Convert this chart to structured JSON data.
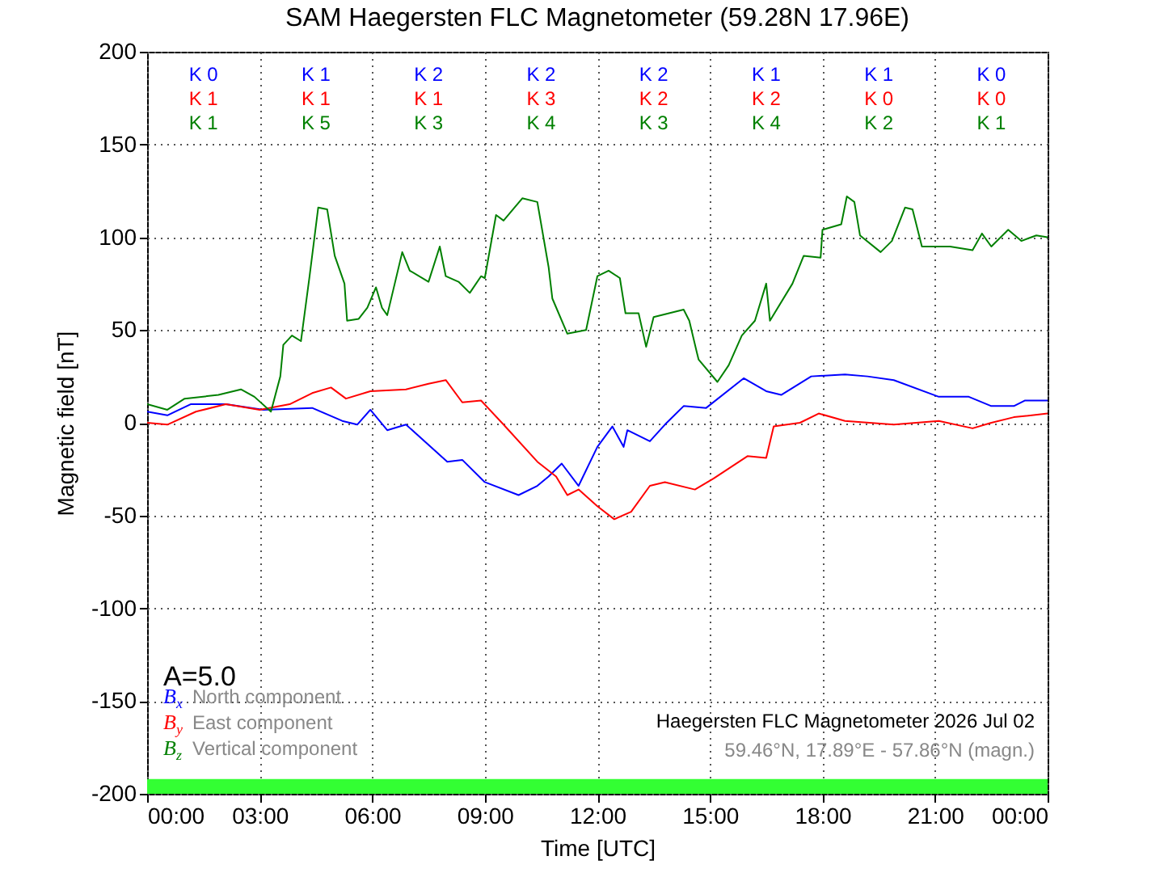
{
  "chart_data": {
    "type": "line",
    "title": "SAM Haegersten FLC Magnetometer (59.28N 17.96E)",
    "xlabel": "Time [UTC]",
    "ylabel": "Magnetic field [nT]",
    "xlim": [
      0,
      24
    ],
    "ylim": [
      -200,
      200
    ],
    "xticks": [
      {
        "value": 0,
        "label": "00:00"
      },
      {
        "value": 3,
        "label": "03:00"
      },
      {
        "value": 6,
        "label": "06:00"
      },
      {
        "value": 9,
        "label": "09:00"
      },
      {
        "value": 12,
        "label": "12:00"
      },
      {
        "value": 15,
        "label": "15:00"
      },
      {
        "value": 18,
        "label": "18:00"
      },
      {
        "value": 21,
        "label": "21:00"
      },
      {
        "value": 24,
        "label": "00:00"
      }
    ],
    "yticks": [
      -200,
      -150,
      -100,
      -50,
      0,
      50,
      100,
      150,
      200
    ],
    "grid": true,
    "line_style": "solid",
    "series": [
      {
        "name": "B$_{x}$ North component",
        "color": "#0000ff",
        "x": [
          0,
          0.54,
          1.16,
          2.1,
          3.1,
          4.4,
          5.2,
          5.6,
          5.95,
          6.4,
          6.9,
          8.0,
          8.4,
          9.0,
          9.9,
          10.4,
          10.7,
          11.05,
          11.5,
          12.0,
          12.4,
          12.7,
          12.8,
          13.4,
          13.8,
          14.3,
          14.9,
          15.9,
          16.5,
          16.9,
          17.7,
          18.6,
          19.2,
          19.9,
          21.1,
          21.9,
          22.5,
          23.1,
          23.4,
          24
        ],
        "values": [
          6,
          4,
          10,
          10,
          7,
          8,
          1,
          -1,
          7,
          -4,
          -1,
          -21,
          -20,
          -32,
          -39,
          -34,
          -29,
          -22,
          -34,
          -13,
          -2,
          -13,
          -4,
          -10,
          -1,
          9,
          8,
          24,
          17,
          15,
          25,
          26,
          25,
          23,
          14,
          14,
          9,
          9,
          12,
          12
        ]
      },
      {
        "name": "B$_{y}$ East component",
        "color": "#ff0000",
        "x": [
          0,
          0.54,
          1.3,
          2.1,
          3.0,
          3.8,
          4.4,
          4.9,
          5.3,
          5.95,
          6.9,
          7.5,
          7.96,
          8.4,
          8.9,
          9.5,
          10.4,
          10.9,
          11.2,
          11.5,
          12.0,
          12.45,
          12.9,
          13.4,
          13.8,
          14.6,
          15.1,
          16.0,
          16.5,
          16.7,
          17.4,
          17.9,
          18.6,
          19.9,
          21.1,
          22.0,
          22.5,
          23.1,
          24
        ],
        "values": [
          0,
          -1,
          6,
          10,
          7,
          10,
          16,
          19,
          13,
          17,
          18,
          21,
          23,
          11,
          12,
          -1,
          -21,
          -29,
          -39,
          -36,
          -45,
          -52,
          -48,
          -34,
          -32,
          -36,
          -30,
          -18,
          -19,
          -2,
          0,
          5,
          1,
          -1,
          1,
          -3,
          0,
          3,
          5
        ]
      },
      {
        "name": "B$_{z}$ Vertical component",
        "color": "#008000",
        "x": [
          0,
          0.54,
          1.0,
          1.9,
          2.5,
          2.86,
          3.3,
          3.55,
          3.63,
          3.86,
          4.1,
          4.33,
          4.56,
          4.8,
          5.0,
          5.26,
          5.33,
          5.64,
          5.87,
          6.1,
          6.26,
          6.4,
          6.8,
          7.0,
          7.5,
          7.8,
          7.96,
          8.3,
          8.6,
          8.9,
          9.0,
          9.3,
          9.5,
          10.0,
          10.4,
          10.7,
          10.8,
          11.2,
          11.7,
          12.0,
          12.3,
          12.6,
          12.75,
          13.1,
          13.3,
          13.5,
          14.3,
          14.45,
          14.65,
          14.7,
          15.2,
          15.5,
          15.85,
          16.2,
          16.5,
          16.6,
          17.2,
          17.5,
          17.95,
          18.0,
          18.5,
          18.65,
          18.85,
          19.0,
          19.55,
          19.85,
          20.2,
          20.4,
          20.65,
          21.4,
          22.0,
          22.25,
          22.5,
          22.95,
          23.3,
          23.7,
          24
        ],
        "values": [
          10,
          7,
          13,
          15,
          18,
          14,
          6,
          25,
          42,
          47,
          44,
          79,
          116,
          115,
          90,
          75,
          55,
          56,
          62,
          73,
          62,
          58,
          92,
          82,
          76,
          95,
          79,
          76,
          70,
          79,
          78,
          112,
          109,
          121,
          119,
          84,
          67,
          48,
          50,
          79,
          82,
          78,
          59,
          59,
          41,
          57,
          61,
          55,
          38,
          34,
          22,
          31,
          47,
          55,
          75,
          55,
          75,
          90,
          89,
          104,
          107,
          122,
          119,
          101,
          92,
          98,
          116,
          115,
          95,
          95,
          93,
          102,
          95,
          104,
          98,
          101,
          100
        ]
      }
    ],
    "bands": [
      {
        "axis": "y",
        "from": -200,
        "to": -192,
        "color": "#33ff33"
      }
    ],
    "annotations": [
      "A=5.0",
      "Haegersten FLC Magnetometer 2026 Jul 02",
      "59.46°N, 17.89°E - 57.86°N (magn.)",
      "K 0",
      "K 1",
      "K 2",
      "K 2",
      "K 2",
      "K 1",
      "K 1",
      "K 0",
      "K 1",
      "K 1",
      "K 1",
      "K 3",
      "K 2",
      "K 2",
      "K 0",
      "K 0",
      "K 1",
      "K 5",
      "K 3",
      "K 4",
      "K 3",
      "K 4",
      "K 2",
      "K 1"
    ]
  }
}
